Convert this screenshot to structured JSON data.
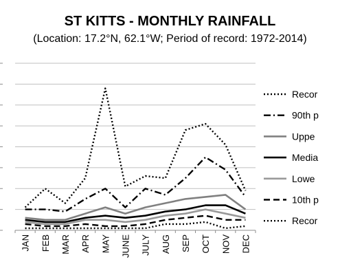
{
  "chart_data": {
    "type": "line",
    "title": "ST KITTS - MONTHLY RAINFALL",
    "subtitle": "(Location: 17.2°N, 62.1°W; Period of record: 1972-2014)",
    "xlabel": "",
    "ylabel": "",
    "categories": [
      "JAN",
      "FEB",
      "MAR",
      "APR",
      "MAY",
      "JUNE",
      "JULY",
      "AUG",
      "SEP",
      "OCT",
      "NOV",
      "DEC"
    ],
    "ylim": [
      0,
      8
    ],
    "grid": true,
    "legend_position": "right",
    "series": [
      {
        "name": "Recor",
        "style": "dotted",
        "color": "#000000",
        "values": [
          1.1,
          2.0,
          1.3,
          2.5,
          6.8,
          2.1,
          2.6,
          2.5,
          4.8,
          5.1,
          4.1,
          1.9
        ]
      },
      {
        "name": "90th p",
        "style": "dashdot",
        "color": "#000000",
        "values": [
          1.0,
          1.0,
          0.9,
          1.5,
          2.0,
          1.1,
          2.0,
          1.7,
          2.5,
          3.5,
          2.9,
          1.6
        ]
      },
      {
        "name": "Uppe",
        "style": "solid",
        "color": "#808080",
        "values": [
          0.6,
          0.5,
          0.5,
          0.8,
          1.1,
          0.8,
          1.1,
          1.3,
          1.5,
          1.6,
          1.7,
          1.0
        ]
      },
      {
        "name": "Media",
        "style": "solid",
        "color": "#000000",
        "values": [
          0.5,
          0.4,
          0.4,
          0.6,
          0.7,
          0.6,
          0.7,
          0.9,
          1.0,
          1.2,
          1.2,
          0.8
        ]
      },
      {
        "name": "Lowe",
        "style": "solid",
        "color": "#999999",
        "values": [
          0.4,
          0.3,
          0.3,
          0.5,
          0.5,
          0.4,
          0.5,
          0.7,
          0.8,
          1.0,
          0.8,
          0.6
        ]
      },
      {
        "name": "10th p",
        "style": "dashed",
        "color": "#000000",
        "values": [
          0.3,
          0.2,
          0.2,
          0.3,
          0.2,
          0.2,
          0.3,
          0.5,
          0.6,
          0.7,
          0.5,
          0.5
        ]
      },
      {
        "name": "Recor",
        "style": "dotted",
        "color": "#000000",
        "values": [
          0.1,
          0.1,
          0.1,
          0.1,
          0.1,
          0.1,
          0.1,
          0.3,
          0.3,
          0.4,
          0.1,
          0.2
        ]
      }
    ]
  }
}
